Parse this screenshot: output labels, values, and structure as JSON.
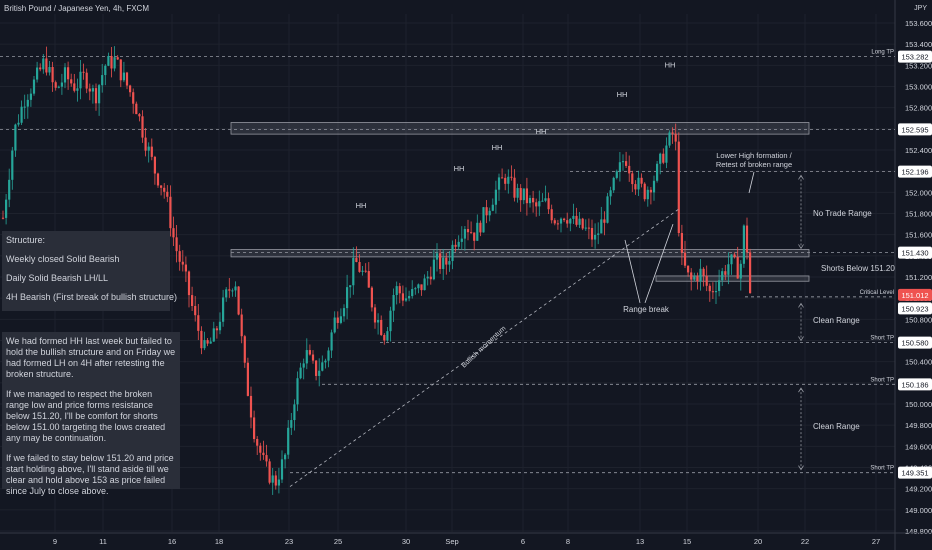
{
  "chart_title": "British Pound / Japanese Yen, 4h, FXCM",
  "currency": "JPY",
  "colors": {
    "bg": "#131722",
    "up": "#26a69a",
    "down": "#ef5350",
    "grid": "#1e222d",
    "text": "#d1d4dc",
    "box": "#2a2e39",
    "red_label": "#ef5350"
  },
  "chart_data": {
    "type": "candlestick",
    "y_axis": {
      "min": 148.8,
      "max": 153.6,
      "ticks": [
        "153.600",
        "153.400",
        "153.200",
        "153.000",
        "152.800",
        "152.600",
        "152.400",
        "152.200",
        "152.000",
        "151.800",
        "151.600",
        "151.400",
        "151.200",
        "151.000",
        "150.800",
        "150.600",
        "150.400",
        "150.200",
        "150.000",
        "149.800",
        "149.600",
        "149.400",
        "149.200",
        "149.000",
        "148.800"
      ]
    },
    "x_axis": {
      "ticks": [
        "9",
        "11",
        "16",
        "18",
        "23",
        "25",
        "30",
        "Sep",
        "6",
        "8",
        "13",
        "15",
        "20",
        "22",
        "27"
      ]
    },
    "key_levels": [
      {
        "label": "Long TP",
        "price": "153.282"
      },
      {
        "label": "",
        "price": "152.595"
      },
      {
        "label": "",
        "price": "152.196"
      },
      {
        "label": "",
        "price": "151.430"
      },
      {
        "label": "Critical Level",
        "price": "151.012"
      },
      {
        "label": "",
        "price": "150.923"
      },
      {
        "label": "Short TP",
        "price": "150.580"
      },
      {
        "label": "Short TP",
        "price": "150.186"
      },
      {
        "label": "Short TP",
        "price": "149.351"
      }
    ],
    "annotations": {
      "hh": [
        "HH",
        "HH",
        "HH",
        "HH",
        "HH",
        "HH"
      ],
      "range_break": "Range break",
      "bullish_momentum": "Bullish momentum",
      "lower_high": [
        "Lower High formation /",
        "Retest of broken range"
      ],
      "no_trade_range": "No Trade Range",
      "shorts_below": "Shorts Below 151.20",
      "clean_range_1": "Clean Range",
      "clean_range_2": "Clean Range"
    },
    "series_path": [
      [
        5,
        151.9
      ],
      [
        15,
        152.6
      ],
      [
        25,
        152.9
      ],
      [
        35,
        153.05
      ],
      [
        45,
        153.25
      ],
      [
        55,
        152.95
      ],
      [
        65,
        153.1
      ],
      [
        75,
        153.0
      ],
      [
        85,
        153.1
      ],
      [
        95,
        152.9
      ],
      [
        105,
        153.2
      ],
      [
        115,
        153.25
      ],
      [
        125,
        153.05
      ],
      [
        135,
        152.85
      ],
      [
        145,
        152.5
      ],
      [
        155,
        152.2
      ],
      [
        165,
        152.0
      ],
      [
        175,
        151.5
      ],
      [
        185,
        151.2
      ],
      [
        195,
        150.8
      ],
      [
        205,
        150.5
      ],
      [
        215,
        150.65
      ],
      [
        225,
        151.0
      ],
      [
        235,
        151.2
      ],
      [
        245,
        150.3
      ],
      [
        255,
        149.7
      ],
      [
        265,
        149.4
      ],
      [
        275,
        149.25
      ],
      [
        285,
        149.5
      ],
      [
        295,
        150.1
      ],
      [
        305,
        150.5
      ],
      [
        315,
        150.3
      ],
      [
        325,
        150.4
      ],
      [
        335,
        150.8
      ],
      [
        345,
        151.0
      ],
      [
        355,
        151.35
      ],
      [
        365,
        151.2
      ],
      [
        375,
        150.85
      ],
      [
        385,
        150.65
      ],
      [
        395,
        151.1
      ],
      [
        405,
        151.0
      ],
      [
        415,
        151.05
      ],
      [
        425,
        151.15
      ],
      [
        435,
        151.35
      ],
      [
        445,
        151.3
      ],
      [
        455,
        151.55
      ],
      [
        465,
        151.7
      ],
      [
        475,
        151.6
      ],
      [
        485,
        151.8
      ],
      [
        495,
        152.0
      ],
      [
        505,
        152.15
      ],
      [
        515,
        152.0
      ],
      [
        525,
        151.95
      ],
      [
        535,
        151.85
      ],
      [
        545,
        151.9
      ],
      [
        555,
        151.75
      ],
      [
        565,
        151.8
      ],
      [
        575,
        151.7
      ],
      [
        585,
        151.65
      ],
      [
        595,
        151.55
      ],
      [
        605,
        151.8
      ],
      [
        615,
        152.1
      ],
      [
        625,
        152.35
      ],
      [
        635,
        152.1
      ],
      [
        645,
        152.0
      ],
      [
        655,
        152.15
      ],
      [
        665,
        152.4
      ],
      [
        675,
        152.6
      ],
      [
        680,
        151.4
      ],
      [
        690,
        151.15
      ],
      [
        700,
        151.25
      ],
      [
        710,
        151.05
      ],
      [
        720,
        151.2
      ],
      [
        730,
        151.35
      ],
      [
        740,
        151.25
      ],
      [
        745,
        151.75
      ],
      [
        750,
        151.05
      ]
    ]
  },
  "structure_box": {
    "heading": "Structure:",
    "lines": [
      "Weekly closed Solid Bearish",
      "Daily Solid Bearish LH/LL",
      "4H Bearish (First break of bullish structure)"
    ]
  },
  "notes_box": {
    "paragraphs": [
      "We had formed HH last week but failed to hold the bullish structure and on Friday we had formed LH on 4H after retesting the broken structure.",
      "If we managed to respect the broken range low and price forms resistance below 151.20, I'll be comfort for shorts below 151.00 targeting the lows created any may be continuation.",
      "If we failed to stay below 151.20 and price start holding above, I'll stand aside till we clear and hold above 153 as price failed since July to close above."
    ]
  }
}
